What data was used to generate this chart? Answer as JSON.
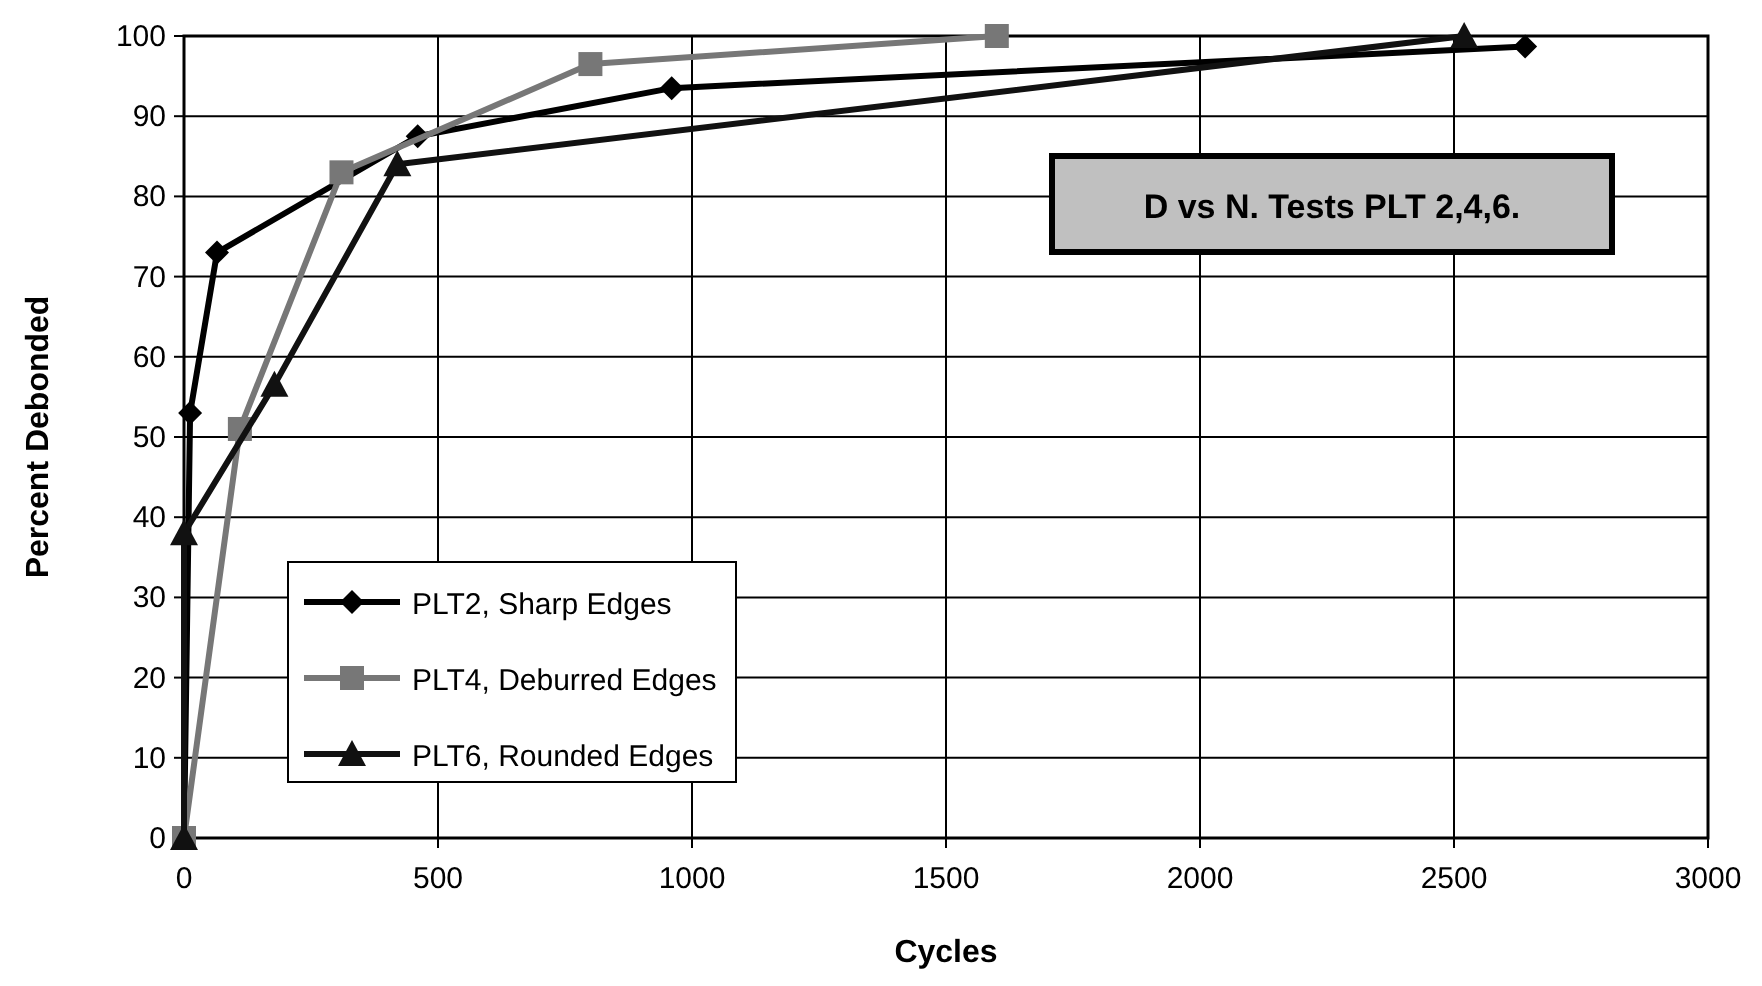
{
  "chart_data": {
    "type": "line",
    "xlabel": "Cycles",
    "ylabel": "Percent Debonded",
    "annotations": [
      "D vs N. Tests PLT 2,4,6."
    ],
    "xlim": [
      0,
      3000
    ],
    "xticks": [
      0,
      500,
      1000,
      1500,
      2000,
      2500,
      3000
    ],
    "ylim": [
      0,
      100
    ],
    "yticks": [
      0,
      10,
      20,
      30,
      40,
      50,
      60,
      70,
      80,
      90,
      100
    ],
    "grid": true,
    "legend": "bottom left",
    "series": [
      {
        "name": "PLT2, Sharp Edges",
        "color": "#000000",
        "marker": "diamond",
        "x": [
          0,
          12,
          65,
          460,
          960,
          2640
        ],
        "values": [
          0,
          53,
          73,
          87.5,
          93.5,
          98.7
        ]
      },
      {
        "name": "PLT4, Deburred Edges",
        "color": "#777777",
        "marker": "square",
        "x": [
          0,
          110,
          310,
          800,
          1600
        ],
        "values": [
          0,
          51,
          83,
          96.5,
          100
        ]
      },
      {
        "name": "PLT6, Rounded Edges",
        "color": "#111111",
        "marker": "triangle",
        "x": [
          0,
          0,
          178,
          420,
          2520
        ],
        "values": [
          0,
          38,
          56.5,
          84,
          100
        ]
      }
    ]
  }
}
